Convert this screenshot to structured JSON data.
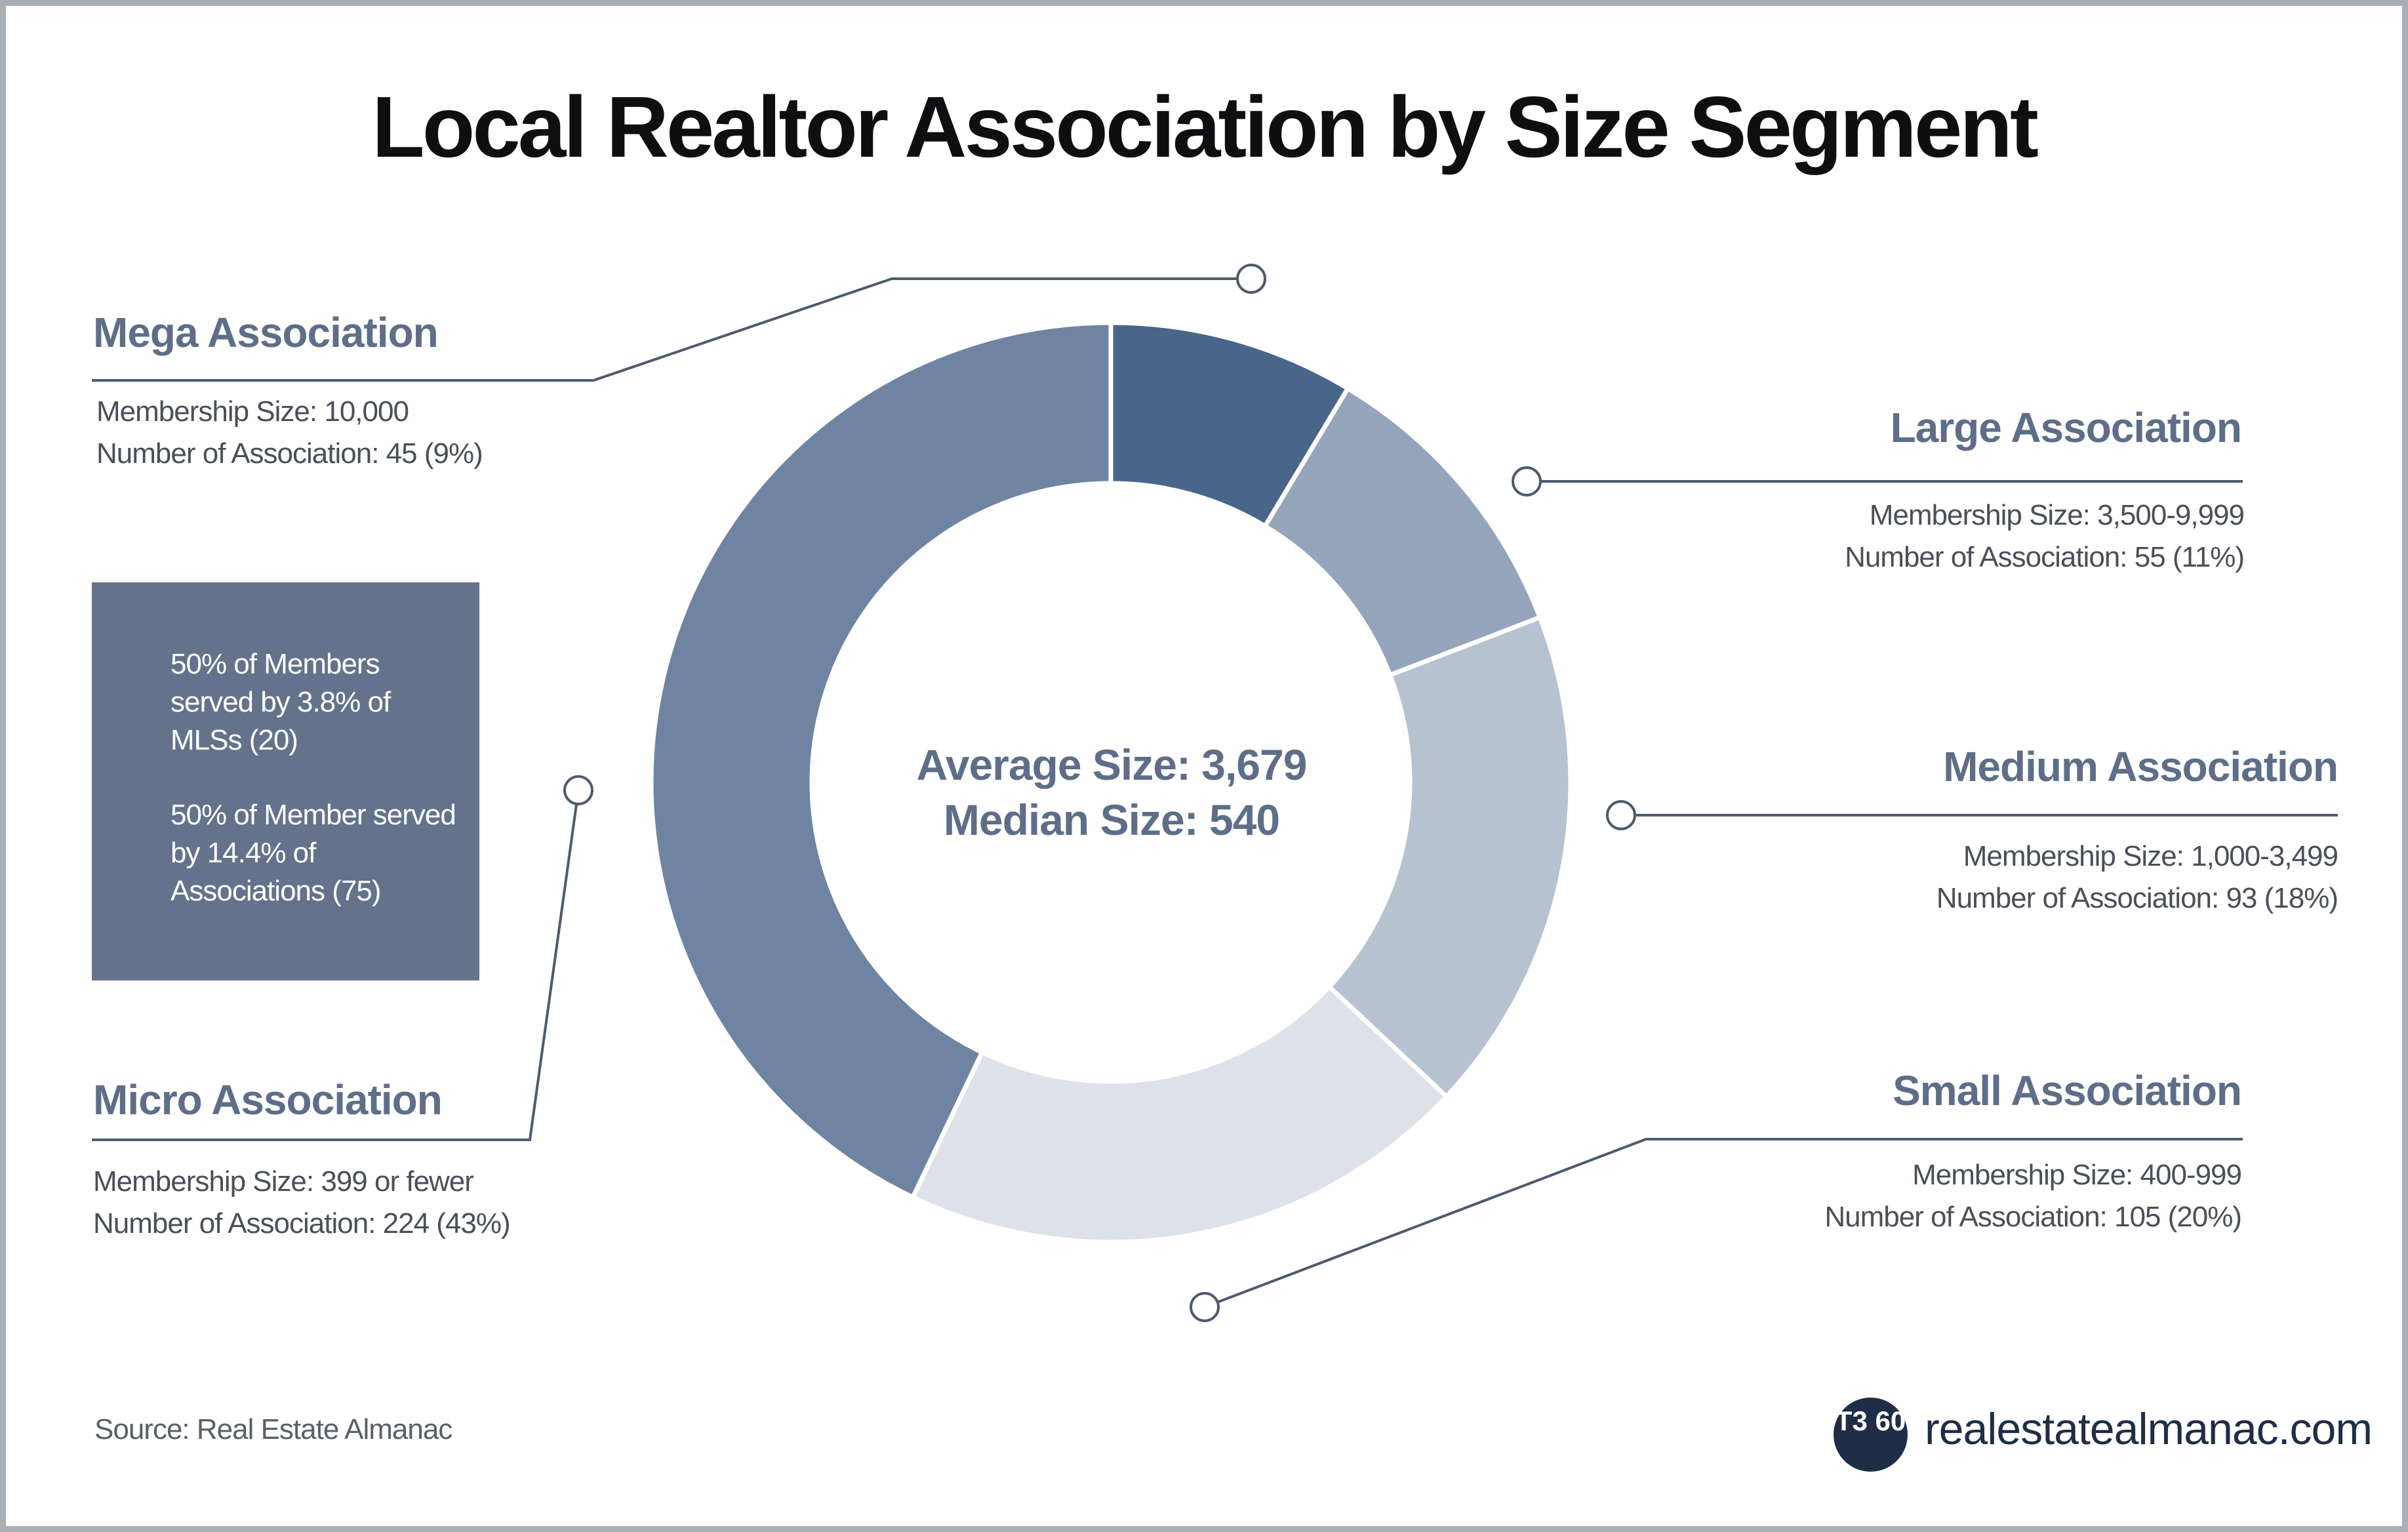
{
  "chart_data": {
    "type": "pie",
    "title": "Local Realtor Association by Size Segment",
    "center_labels": [
      "Average Size: 3,679",
      "Median Size: 540"
    ],
    "slices": [
      {
        "name": "Mega Association",
        "membership": "Membership Size: 10,000",
        "count_text": "Number of Association: 45 (9%)",
        "value": 45,
        "color": "#48658a"
      },
      {
        "name": "Large Association",
        "membership": "Membership Size: 3,500-9,999",
        "count_text": "Number of Association: 55 (11%)",
        "value": 55,
        "color": "#93a4bb"
      },
      {
        "name": "Medium Association",
        "membership": "Membership Size: 1,000-3,499",
        "count_text": "Number of Association: 93 (18%)",
        "value": 93,
        "color": "#b7c2d1"
      },
      {
        "name": "Small Association",
        "membership": "Membership Size: 400-999",
        "count_text": "Number of Association: 105 (20%)",
        "value": 105,
        "color": "#dde2ea"
      },
      {
        "name": "Micro Association",
        "membership": "Membership Size: 399 or fewer",
        "count_text": "Number of Association: 224 (43%)",
        "value": 224,
        "color": "#6e84a2"
      }
    ]
  },
  "note": {
    "line1": "50% of Members served by 3.8% of MLSs (20)",
    "line2": "50% of Member served by 14.4% of Associations (75)"
  },
  "source": "Source: Real Estate Almanac",
  "logo_text": "T3 60",
  "website": "realestatealmanac.com",
  "colors": {
    "accent": "#5e6e89",
    "leader": "#4e5a6e"
  }
}
